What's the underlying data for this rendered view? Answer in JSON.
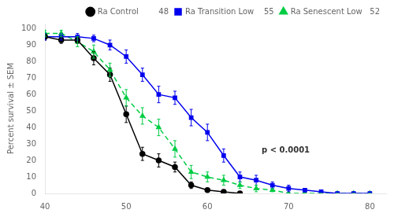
{
  "chart_data": {
    "type": "line",
    "ylabel": "Percent survival ± SEM",
    "annotation": "p < 0.0001",
    "xlim": [
      40,
      82
    ],
    "ylim": [
      0,
      103
    ],
    "xticks": [
      40,
      50,
      60,
      70,
      80
    ],
    "yticks": [
      0,
      10,
      20,
      30,
      40,
      50,
      60,
      70,
      80,
      90,
      100
    ],
    "grid": false,
    "legend": "upper right",
    "series": [
      {
        "name": "Ra Control        48",
        "color": "#000000",
        "marker": "circle",
        "line_style": "solid",
        "x": [
          40,
          42,
          44,
          46,
          48,
          50,
          52,
          54,
          56,
          58,
          60,
          62,
          64
        ],
        "values": [
          95,
          93,
          93,
          82,
          72,
          48,
          24,
          20,
          16,
          5,
          2,
          1,
          0
        ],
        "errors": [
          2,
          2,
          2,
          4,
          4,
          5,
          4,
          4,
          3,
          2,
          1,
          1,
          0
        ]
      },
      {
        "name": "Ra Transition Low    55",
        "color": "#0000ee",
        "marker": "square",
        "line_style": "solid",
        "x": [
          40,
          42,
          44,
          46,
          48,
          50,
          52,
          54,
          56,
          58,
          60,
          62,
          64,
          66,
          68,
          70,
          72,
          74,
          76,
          78,
          80
        ],
        "values": [
          95,
          95,
          95,
          94,
          90,
          83,
          72,
          60,
          58,
          46,
          37,
          23,
          10,
          8,
          5,
          3,
          2,
          1,
          0,
          0,
          0
        ],
        "errors": [
          2,
          2,
          2,
          2,
          3,
          4,
          4,
          5,
          4,
          5,
          5,
          4,
          3,
          3,
          2,
          2,
          1,
          1,
          0,
          0,
          0
        ]
      },
      {
        "name": "Ra Senescent Low   52",
        "color": "#00cc44",
        "marker": "triangle",
        "line_style": "dashed",
        "x": [
          40,
          42,
          44,
          46,
          48,
          50,
          52,
          54,
          56,
          58,
          60,
          62,
          64,
          66,
          68,
          70,
          72,
          74,
          76,
          78,
          80
        ],
        "values": [
          97,
          97,
          92,
          86,
          75,
          58,
          47,
          40,
          27,
          13,
          10,
          8,
          5,
          3,
          2,
          0,
          0,
          0,
          0,
          0,
          0
        ],
        "errors": [
          2,
          2,
          3,
          4,
          4,
          5,
          5,
          5,
          5,
          4,
          3,
          3,
          2,
          2,
          1,
          0,
          0,
          0,
          0,
          0,
          0
        ]
      }
    ]
  }
}
